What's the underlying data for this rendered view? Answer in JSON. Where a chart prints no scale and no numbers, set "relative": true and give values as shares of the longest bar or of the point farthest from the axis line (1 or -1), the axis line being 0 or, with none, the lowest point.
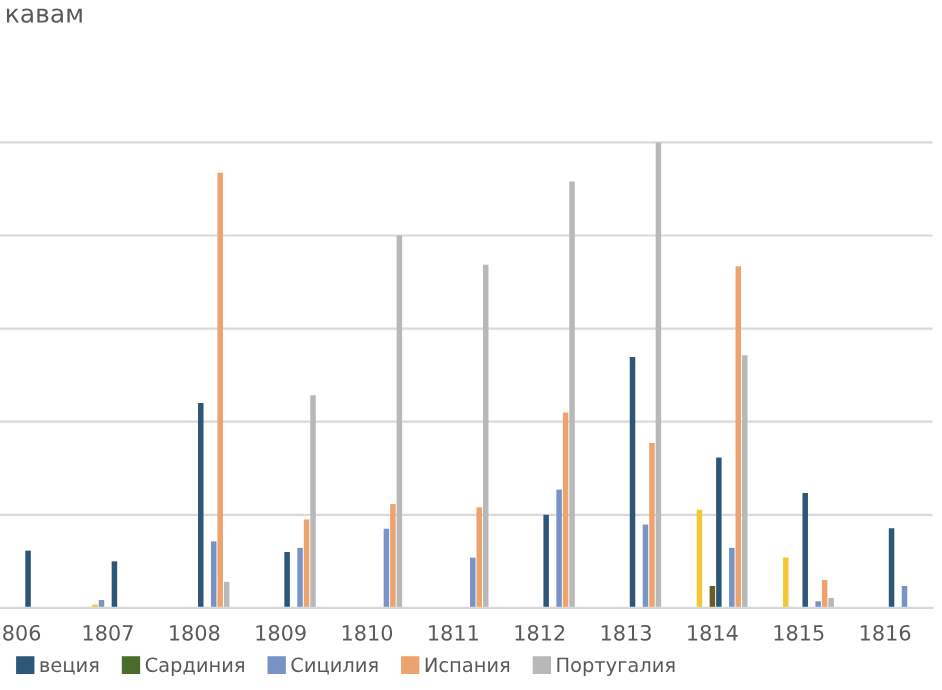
{
  "chart_data": {
    "type": "bar",
    "title": "кавам",
    "relative": true,
    "grid": "y",
    "legend": "bottom",
    "categories": [
      "806",
      "1807",
      "1808",
      "1809",
      "1810",
      "1811",
      "1812",
      "1813",
      "1814",
      "1815",
      "1816"
    ],
    "series": [
      {
        "color": "#f2c832",
        "values": [
          null,
          0.007,
          null,
          null,
          null,
          null,
          null,
          null,
          0.211,
          0.108,
          null
        ]
      },
      {
        "color": "#7f95b8",
        "values": [
          null,
          0.017,
          null,
          null,
          null,
          null,
          null,
          null,
          null,
          null,
          null
        ]
      },
      {
        "color": "#6b5d1f",
        "values": [
          null,
          null,
          null,
          null,
          null,
          null,
          null,
          null,
          0.047,
          null,
          null
        ]
      },
      {
        "name": "веция",
        "color": "#2e5677",
        "values": [
          0.123,
          0.1,
          0.44,
          0.12,
          null,
          null,
          0.2,
          0.539,
          0.323,
          0.247,
          0.171
        ]
      },
      {
        "name": "Сардиния",
        "color": "#4a6b2a",
        "values": [
          null,
          null,
          null,
          null,
          null,
          null,
          null,
          null,
          null,
          null,
          null
        ]
      },
      {
        "name": "Сицилия",
        "color": "#7793c8",
        "values": [
          null,
          null,
          0.143,
          0.129,
          0.17,
          0.108,
          0.254,
          0.179,
          0.129,
          0.014,
          0.047
        ]
      },
      {
        "name": "Испания",
        "color": "#eda36e",
        "values": [
          null,
          null,
          0.935,
          0.19,
          0.223,
          0.216,
          0.42,
          0.354,
          0.734,
          0.06,
          null
        ]
      },
      {
        "name": "Португалия",
        "color": "#b8b8b8",
        "values": [
          null,
          null,
          0.056,
          0.457,
          0.8,
          0.737,
          0.916,
          1,
          0.543,
          0.021,
          null
        ]
      }
    ]
  }
}
